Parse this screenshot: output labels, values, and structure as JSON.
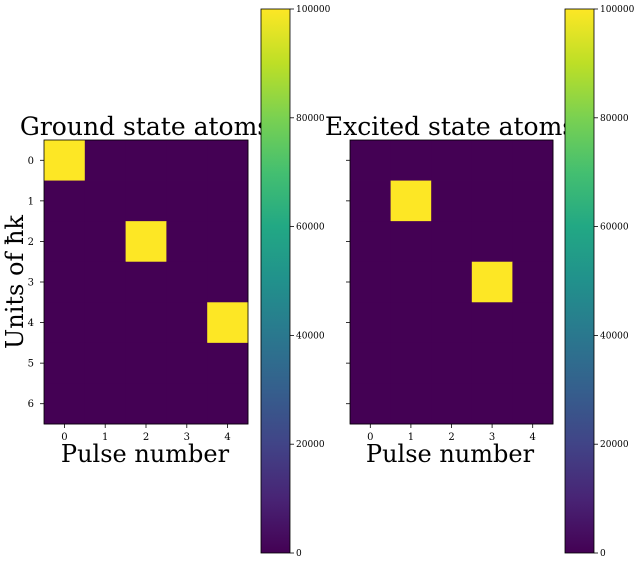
{
  "chart_data": [
    {
      "type": "heatmap",
      "title": "Ground state atoms",
      "xlabel": "Pulse number",
      "ylabel": "Units of ħk",
      "x_ticks": [
        "0",
        "1",
        "2",
        "3",
        "4"
      ],
      "y_ticks": [
        "0",
        "1",
        "2",
        "3",
        "4",
        "5",
        "6"
      ],
      "rows": 7,
      "cols": 5,
      "values": [
        [
          100000,
          0,
          0,
          0,
          0
        ],
        [
          0,
          0,
          0,
          0,
          0
        ],
        [
          0,
          0,
          100000,
          0,
          0
        ],
        [
          0,
          0,
          0,
          0,
          0
        ],
        [
          0,
          0,
          0,
          0,
          100000
        ],
        [
          0,
          0,
          0,
          0,
          0
        ],
        [
          0,
          0,
          0,
          0,
          0
        ]
      ],
      "colormap": "viridis",
      "vmin": 0,
      "vmax": 100000,
      "colorbar_ticks": [
        "0",
        "20000",
        "40000",
        "60000",
        "80000",
        "100000"
      ]
    },
    {
      "type": "heatmap",
      "title": "Excited state atoms",
      "xlabel": "Pulse number",
      "ylabel": "",
      "x_ticks": [
        "0",
        "1",
        "2",
        "3",
        "4"
      ],
      "y_ticks": [],
      "rows": 7,
      "cols": 5,
      "values": [
        [
          0,
          0,
          0,
          0,
          0
        ],
        [
          0,
          100000,
          0,
          0,
          0
        ],
        [
          0,
          0,
          0,
          0,
          0
        ],
        [
          0,
          0,
          0,
          100000,
          0
        ],
        [
          0,
          0,
          0,
          0,
          0
        ],
        [
          0,
          0,
          0,
          0,
          0
        ],
        [
          0,
          0,
          0,
          0,
          0
        ]
      ],
      "colormap": "viridis",
      "vmin": 0,
      "vmax": 100000,
      "colorbar_ticks": [
        "0",
        "20000",
        "40000",
        "60000",
        "80000",
        "100000"
      ]
    }
  ],
  "colors": {
    "low": "#440154",
    "high": "#fde725"
  }
}
